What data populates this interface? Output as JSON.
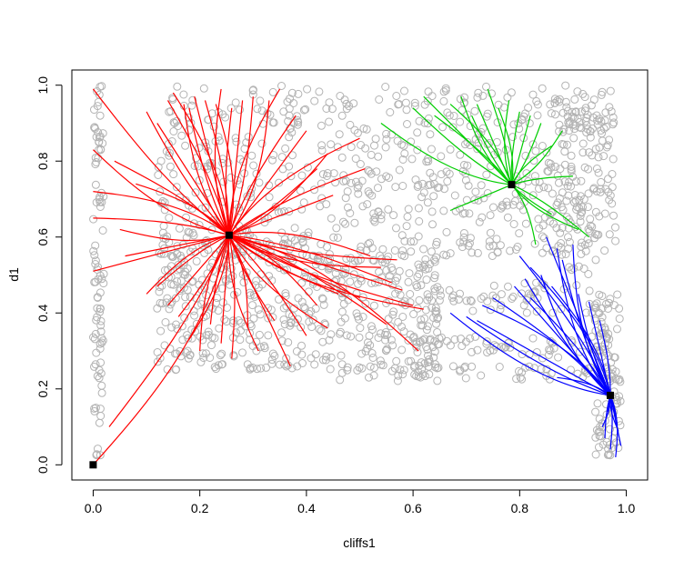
{
  "chart_data": {
    "type": "scatter",
    "title": "",
    "xlabel": "cliffs1",
    "ylabel": "d1",
    "xlim": [
      -0.04,
      1.04
    ],
    "ylim": [
      -0.04,
      1.04
    ],
    "x_ticks": [
      0.0,
      0.2,
      0.4,
      0.6,
      0.8,
      1.0
    ],
    "x_tick_labels": [
      "0.0",
      "0.2",
      "0.4",
      "0.6",
      "0.8",
      "1.0"
    ],
    "y_ticks": [
      0.0,
      0.2,
      0.4,
      0.6,
      0.8,
      1.0
    ],
    "y_tick_labels": [
      "0.0",
      "0.2",
      "0.4",
      "0.6",
      "0.8",
      "1.0"
    ],
    "grid": false,
    "legend": "none",
    "background_points_color": "#B3B3B3",
    "background_point_regions": [
      {
        "x": [
          0.0,
          0.02
        ],
        "y": [
          0.02,
          1.0
        ],
        "density": "dense"
      },
      {
        "x": [
          0.12,
          0.98
        ],
        "y": [
          0.55,
          1.0
        ],
        "density": "dense"
      },
      {
        "x": [
          0.12,
          0.45
        ],
        "y": [
          0.25,
          0.6
        ],
        "density": "dense"
      },
      {
        "x": [
          0.45,
          0.65
        ],
        "y": [
          0.22,
          0.55
        ],
        "density": "dense"
      },
      {
        "x": [
          0.6,
          0.98
        ],
        "y": [
          0.28,
          0.34
        ],
        "density": "medium"
      },
      {
        "x": [
          0.6,
          0.98
        ],
        "y": [
          0.22,
          0.26
        ],
        "density": "medium"
      },
      {
        "x": [
          0.62,
          0.95
        ],
        "y": [
          0.4,
          0.48
        ],
        "density": "medium"
      },
      {
        "x": [
          0.94,
          0.99
        ],
        "y": [
          0.02,
          0.45
        ],
        "density": "dense"
      },
      {
        "x": [
          0.85,
          0.98
        ],
        "y": [
          0.5,
          0.98
        ],
        "density": "medium"
      }
    ],
    "centers": [
      {
        "name": "origin",
        "x": 0.0,
        "y": 0.0,
        "color": "#000000"
      },
      {
        "name": "red",
        "x": 0.255,
        "y": 0.605,
        "color": "#000000"
      },
      {
        "name": "green",
        "x": 0.785,
        "y": 0.738,
        "color": "#000000"
      },
      {
        "name": "blue",
        "x": 0.97,
        "y": 0.183,
        "color": "#000000"
      }
    ],
    "series": [
      {
        "color": "#FF0000",
        "center": [
          0.255,
          0.605
        ],
        "endpoints": [
          [
            0.0,
            0.0
          ],
          [
            0.03,
            0.1
          ],
          [
            0.0,
            0.51
          ],
          [
            0.0,
            0.65
          ],
          [
            0.0,
            0.72
          ],
          [
            0.0,
            0.83
          ],
          [
            0.0,
            0.99
          ],
          [
            0.06,
            0.55
          ],
          [
            0.04,
            0.8
          ],
          [
            0.08,
            0.74
          ],
          [
            0.05,
            0.62
          ],
          [
            0.1,
            0.93
          ],
          [
            0.12,
            0.9
          ],
          [
            0.14,
            0.96
          ],
          [
            0.15,
            0.98
          ],
          [
            0.17,
            0.95
          ],
          [
            0.18,
            0.94
          ],
          [
            0.19,
            0.97
          ],
          [
            0.21,
            0.96
          ],
          [
            0.23,
            0.95
          ],
          [
            0.24,
            0.99
          ],
          [
            0.26,
            0.94
          ],
          [
            0.28,
            0.96
          ],
          [
            0.3,
            0.97
          ],
          [
            0.33,
            0.96
          ],
          [
            0.35,
            0.99
          ],
          [
            0.38,
            0.92
          ],
          [
            0.4,
            0.88
          ],
          [
            0.42,
            0.78
          ],
          [
            0.44,
            0.82
          ],
          [
            0.5,
            0.86
          ],
          [
            0.51,
            0.78
          ],
          [
            0.45,
            0.71
          ],
          [
            0.57,
            0.54
          ],
          [
            0.54,
            0.52
          ],
          [
            0.52,
            0.55
          ],
          [
            0.56,
            0.48
          ],
          [
            0.58,
            0.46
          ],
          [
            0.6,
            0.42
          ],
          [
            0.62,
            0.41
          ],
          [
            0.61,
            0.3
          ],
          [
            0.55,
            0.37
          ],
          [
            0.5,
            0.44
          ],
          [
            0.46,
            0.45
          ],
          [
            0.44,
            0.36
          ],
          [
            0.42,
            0.42
          ],
          [
            0.4,
            0.34
          ],
          [
            0.37,
            0.26
          ],
          [
            0.34,
            0.38
          ],
          [
            0.31,
            0.3
          ],
          [
            0.29,
            0.36
          ],
          [
            0.26,
            0.28
          ],
          [
            0.24,
            0.32
          ],
          [
            0.22,
            0.37
          ],
          [
            0.2,
            0.3
          ],
          [
            0.18,
            0.33
          ],
          [
            0.16,
            0.39
          ],
          [
            0.14,
            0.42
          ],
          [
            0.12,
            0.47
          ],
          [
            0.1,
            0.45
          ]
        ]
      },
      {
        "color": "#00CD00",
        "center": [
          0.785,
          0.738
        ],
        "endpoints": [
          [
            0.54,
            0.9
          ],
          [
            0.6,
            0.94
          ],
          [
            0.62,
            0.97
          ],
          [
            0.64,
            0.92
          ],
          [
            0.67,
            0.95
          ],
          [
            0.69,
            0.97
          ],
          [
            0.71,
            0.92
          ],
          [
            0.72,
            0.95
          ],
          [
            0.74,
            0.99
          ],
          [
            0.76,
            0.94
          ],
          [
            0.78,
            0.96
          ],
          [
            0.8,
            0.93
          ],
          [
            0.82,
            0.92
          ],
          [
            0.84,
            0.9
          ],
          [
            0.88,
            0.88
          ],
          [
            0.86,
            0.84
          ],
          [
            0.9,
            0.76
          ],
          [
            0.67,
            0.67
          ],
          [
            0.86,
            0.66
          ],
          [
            0.91,
            0.62
          ],
          [
            0.83,
            0.58
          ],
          [
            0.93,
            0.6
          ]
        ]
      },
      {
        "color": "#0000FF",
        "center": [
          0.97,
          0.183
        ],
        "endpoints": [
          [
            0.87,
            0.57
          ],
          [
            0.88,
            0.54
          ],
          [
            0.85,
            0.6
          ],
          [
            0.8,
            0.55
          ],
          [
            0.82,
            0.52
          ],
          [
            0.84,
            0.5
          ],
          [
            0.81,
            0.49
          ],
          [
            0.79,
            0.47
          ],
          [
            0.75,
            0.44
          ],
          [
            0.73,
            0.42
          ],
          [
            0.67,
            0.4
          ],
          [
            0.7,
            0.39
          ],
          [
            0.72,
            0.38
          ],
          [
            0.82,
            0.44
          ],
          [
            0.86,
            0.47
          ],
          [
            0.9,
            0.58
          ],
          [
            0.91,
            0.45
          ],
          [
            0.93,
            0.43
          ],
          [
            0.95,
            0.38
          ],
          [
            0.87,
            0.23
          ],
          [
            0.98,
            0.02
          ],
          [
            0.97,
            0.04
          ],
          [
            0.99,
            0.05
          ],
          [
            0.96,
            0.07
          ],
          [
            0.985,
            0.09
          ],
          [
            0.955,
            0.1
          ],
          [
            0.98,
            0.12
          ],
          [
            0.965,
            0.14
          ]
        ]
      }
    ]
  }
}
